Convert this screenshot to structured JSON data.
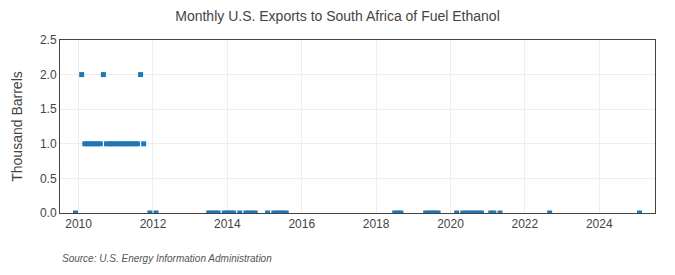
{
  "chart_data": {
    "type": "scatter",
    "title": "Monthly U.S. Exports to South Africa of Fuel Ethanol",
    "ylabel": "Thousand Barrels",
    "annotations": [
      "Source: U.S. Energy Information Administration"
    ],
    "marker": "square",
    "grid": true,
    "xlim": [
      2009.5,
      2025.5
    ],
    "xticks": [
      2010,
      2012,
      2014,
      2016,
      2018,
      2020,
      2022,
      2024
    ],
    "ylim": [
      0,
      2.5
    ],
    "yticks": [
      {
        "value": 0.0,
        "label": "0.0"
      },
      0.5,
      {
        "value": 1.0,
        "label": "1.0"
      },
      1.5,
      {
        "value": 2.0,
        "label": "2.0"
      },
      2.5
    ],
    "x": [
      2009.917,
      2010.083,
      2010.167,
      2010.25,
      2010.333,
      2010.417,
      2010.5,
      2010.583,
      2010.667,
      2010.75,
      2010.833,
      2010.917,
      2011.0,
      2011.083,
      2011.167,
      2011.25,
      2011.333,
      2011.417,
      2011.5,
      2011.583,
      2011.667,
      2011.75,
      2011.917,
      2012.083,
      2013.5,
      2013.583,
      2013.667,
      2013.75,
      2013.917,
      2014.0,
      2014.083,
      2014.167,
      2014.333,
      2014.5,
      2014.583,
      2014.667,
      2014.75,
      2015.083,
      2015.25,
      2015.333,
      2015.417,
      2015.5,
      2015.583,
      2018.5,
      2018.583,
      2018.667,
      2019.333,
      2019.417,
      2019.5,
      2019.583,
      2019.667,
      2020.167,
      2020.333,
      2020.417,
      2020.5,
      2020.583,
      2020.667,
      2020.75,
      2020.833,
      2021.083,
      2021.167,
      2021.333,
      2022.667,
      2025.083
    ],
    "values": [
      0.0,
      2.0,
      1.0,
      1.0,
      1.0,
      1.0,
      1.0,
      1.0,
      2.0,
      1.0,
      1.0,
      1.0,
      1.0,
      1.0,
      1.0,
      1.0,
      1.0,
      1.0,
      1.0,
      1.0,
      2.0,
      1.0,
      0.0,
      0.0,
      0.0,
      0.0,
      0.0,
      0.0,
      0.0,
      0.0,
      0.0,
      0.0,
      0.0,
      0.0,
      0.0,
      0.0,
      0.0,
      0.0,
      0.0,
      0.0,
      0.0,
      0.0,
      0.0,
      0.0,
      0.0,
      0.0,
      0.0,
      0.0,
      0.0,
      0.0,
      0.0,
      0.0,
      0.0,
      0.0,
      0.0,
      0.0,
      0.0,
      0.0,
      0.0,
      0.0,
      0.0,
      0.0,
      0.0,
      0.0
    ]
  }
}
